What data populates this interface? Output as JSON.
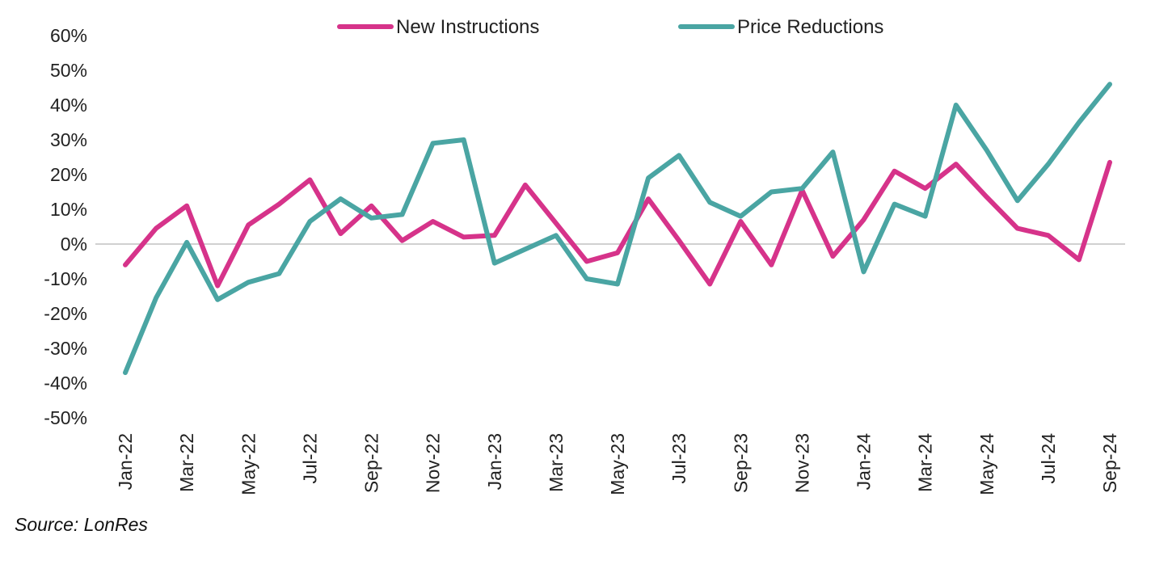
{
  "chart_data": {
    "type": "line",
    "x": [
      "Jan-22",
      "Feb-22",
      "Mar-22",
      "Apr-22",
      "May-22",
      "Jun-22",
      "Jul-22",
      "Aug-22",
      "Sep-22",
      "Oct-22",
      "Nov-22",
      "Dec-22",
      "Jan-23",
      "Feb-23",
      "Mar-23",
      "Apr-23",
      "May-23",
      "Jun-23",
      "Jul-23",
      "Aug-23",
      "Sep-23",
      "Oct-23",
      "Nov-23",
      "Dec-23",
      "Jan-24",
      "Feb-24",
      "Mar-24",
      "Apr-24",
      "May-24",
      "Jun-24",
      "Jul-24",
      "Aug-24",
      "Sep-24"
    ],
    "x_tick_labels": [
      "Jan-22",
      "Mar-22",
      "May-22",
      "Jul-22",
      "Sep-22",
      "Nov-22",
      "Jan-23",
      "Mar-23",
      "May-23",
      "Jul-23",
      "Sep-23",
      "Nov-23",
      "Jan-24",
      "Mar-24",
      "May-24",
      "Jul-24",
      "Sep-24"
    ],
    "y_ticks": [
      -50,
      -40,
      -30,
      -20,
      -10,
      0,
      10,
      20,
      30,
      40,
      50,
      60
    ],
    "y_tick_labels": [
      "-50%",
      "-40%",
      "-30%",
      "-20%",
      "-10%",
      "0%",
      "10%",
      "20%",
      "30%",
      "40%",
      "50%",
      "60%"
    ],
    "ylim": [
      -50,
      60
    ],
    "y_unit": "%",
    "legend_position": "top",
    "series": [
      {
        "name": "New Instructions",
        "color": "#D6338A",
        "values": [
          -6,
          4.5,
          11,
          -12,
          5.5,
          11.5,
          18.5,
          3,
          11,
          1,
          6.5,
          2,
          2.5,
          17,
          6,
          -5,
          -2.5,
          13,
          1,
          -11.5,
          6.5,
          -6,
          15.5,
          -3.5,
          7,
          21,
          16,
          23,
          13.5,
          4.5,
          2.5,
          -4.5,
          23.5
        ]
      },
      {
        "name": "Price Reductions",
        "color": "#4AA5A3",
        "values": [
          -37,
          -15.5,
          0.5,
          -16,
          -11,
          -8.5,
          6.5,
          13,
          7.5,
          8.5,
          29,
          30,
          -5.5,
          -1.5,
          2.5,
          -10,
          -11.5,
          19,
          25.5,
          12,
          8,
          15,
          16,
          26.5,
          -8,
          11.5,
          8,
          40,
          27,
          12.5,
          23,
          35,
          46
        ]
      }
    ]
  },
  "source": "Source: LonRes"
}
